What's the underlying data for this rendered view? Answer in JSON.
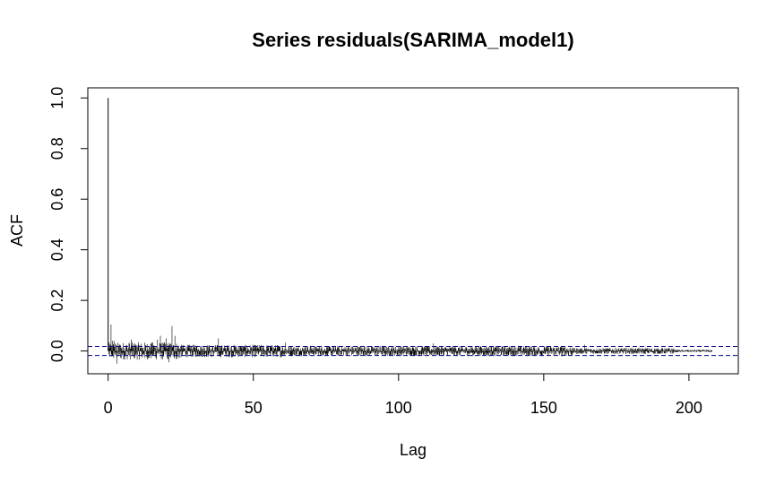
{
  "chart_data": {
    "type": "bar",
    "title": "Series  residuals(SARIMA_model1)",
    "xlabel": "Lag",
    "ylabel": "ACF",
    "xlim": [
      -7,
      217
    ],
    "ylim": [
      -0.09,
      1.04
    ],
    "x_ticks": [
      0,
      50,
      100,
      150,
      200
    ],
    "x_tick_labels": [
      "0",
      "50",
      "100",
      "150",
      "200"
    ],
    "y_ticks": [
      0.0,
      0.2,
      0.4,
      0.6,
      0.8,
      1.0
    ],
    "y_tick_labels": [
      "0.0",
      "0.2",
      "0.4",
      "0.6",
      "0.8",
      "1.0"
    ],
    "confidence_band": [
      -0.018,
      0.018
    ],
    "lag_range": [
      0,
      208
    ],
    "lag_step": 0.0833,
    "lag_zero_value": 1.0,
    "grid": false,
    "legend": "none",
    "highlight_values": [
      {
        "lag": 1,
        "acf": 0.105
      },
      {
        "lag": 1.5,
        "acf": 0.04
      },
      {
        "lag": 2,
        "acf": 0.04
      },
      {
        "lag": 3,
        "acf": -0.05
      },
      {
        "lag": 8,
        "acf": 0.045
      },
      {
        "lag": 17,
        "acf": 0.045
      },
      {
        "lag": 18,
        "acf": 0.06
      },
      {
        "lag": 20,
        "acf": 0.05
      },
      {
        "lag": 21,
        "acf": -0.045
      },
      {
        "lag": 22,
        "acf": 0.098
      },
      {
        "lag": 23,
        "acf": 0.06
      },
      {
        "lag": 38,
        "acf": 0.05
      },
      {
        "lag": 61,
        "acf": 0.033
      },
      {
        "lag": 112,
        "acf": 0.03
      },
      {
        "lag": 164,
        "acf": 0.025
      }
    ]
  },
  "colors": {
    "bars": "#000000",
    "confidence_band": "#00008b",
    "axes": "#000000",
    "background": "#ffffff"
  }
}
